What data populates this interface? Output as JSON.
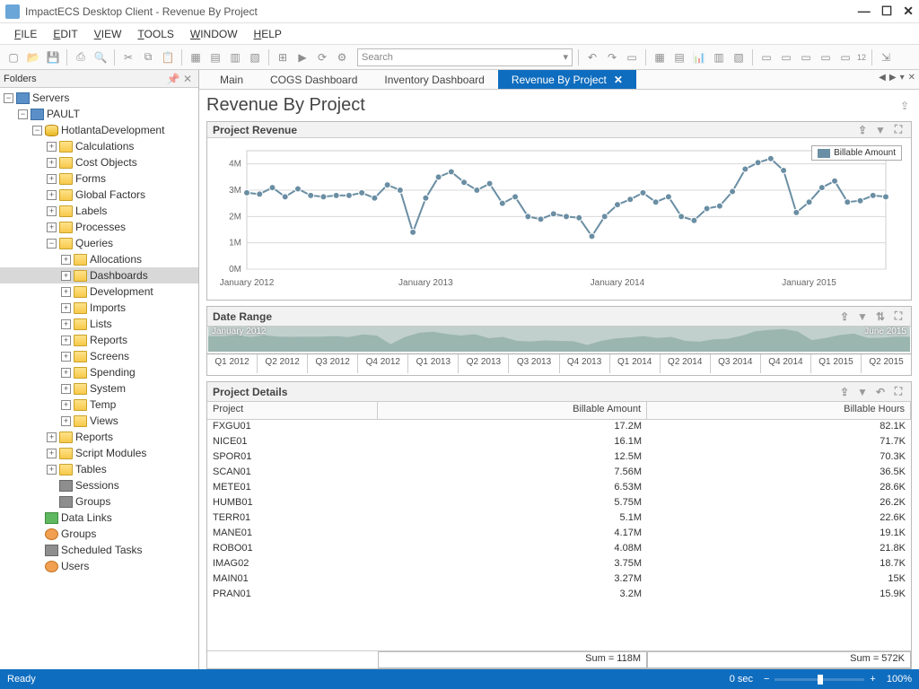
{
  "window": {
    "title": "ImpactECS Desktop Client - Revenue By Project"
  },
  "menu": {
    "file": "FILE",
    "edit": "EDIT",
    "view": "VIEW",
    "tools": "TOOLS",
    "window": "WINDOW",
    "help": "HELP"
  },
  "toolbar": {
    "search_placeholder": "Search"
  },
  "folders": {
    "title": "Folders",
    "root": "Servers",
    "server": "PAULT",
    "db": "HotlantaDevelopment",
    "db_children": [
      "Calculations",
      "Cost Objects",
      "Forms",
      "Global Factors",
      "Labels",
      "Processes",
      "Queries"
    ],
    "queries_children": [
      "Allocations",
      "Dashboards",
      "Development",
      "Imports",
      "Lists",
      "Reports",
      "Screens",
      "Spending",
      "System",
      "Temp",
      "Views"
    ],
    "after_queries": [
      "Reports",
      "Script Modules",
      "Tables",
      "Sessions",
      "Groups"
    ],
    "bottom": [
      "Data Links",
      "Groups",
      "Scheduled Tasks",
      "Users"
    ],
    "selected": "Dashboards"
  },
  "tabs": {
    "items": [
      "Main",
      "COGS Dashboard",
      "Inventory Dashboard",
      "Revenue By Project"
    ],
    "active": 3
  },
  "page": {
    "title": "Revenue By Project"
  },
  "chart": {
    "title": "Project Revenue",
    "type": "line",
    "legend": "Billable Amount",
    "ylim": [
      0,
      4500000
    ],
    "yticks": [
      0,
      1000000,
      2000000,
      3000000,
      4000000
    ],
    "ytick_labels": [
      "0M",
      "1M",
      "2M",
      "3M",
      "4M"
    ],
    "xtick_labels": [
      "January 2012",
      "January 2013",
      "January 2014",
      "January 2015"
    ],
    "line_color": "#6a8ea3",
    "marker_color": "#6a8ea3",
    "grid_color": "#d8d8d8",
    "background_color": "#ffffff",
    "values_millions": [
      2.9,
      2.85,
      3.1,
      2.75,
      3.05,
      2.8,
      2.75,
      2.8,
      2.8,
      2.9,
      2.7,
      3.2,
      3.0,
      1.4,
      2.7,
      3.5,
      3.7,
      3.3,
      3.0,
      3.25,
      2.5,
      2.75,
      2.0,
      1.9,
      2.1,
      2.0,
      1.95,
      1.25,
      2.0,
      2.45,
      2.65,
      2.9,
      2.55,
      2.75,
      2.0,
      1.85,
      2.3,
      2.4,
      2.95,
      3.8,
      4.05,
      4.2,
      3.75,
      2.15,
      2.55,
      3.1,
      3.35,
      2.55,
      2.6,
      2.8,
      2.75
    ]
  },
  "range": {
    "title": "Date Range",
    "start_label": "January 2012",
    "end_label": "June 2015",
    "area_color": "#9bb5af",
    "strip_bg": "#cdd9d6",
    "ticks": [
      "Q1 2012",
      "Q2 2012",
      "Q3 2012",
      "Q4 2012",
      "Q1 2013",
      "Q2 2013",
      "Q3 2013",
      "Q4 2013",
      "Q1 2014",
      "Q2 2014",
      "Q3 2014",
      "Q4 2014",
      "Q1 2015",
      "Q2 2015"
    ]
  },
  "details": {
    "title": "Project Details",
    "columns": [
      "Project",
      "Billable Amount",
      "Billable Hours"
    ],
    "rows": [
      [
        "FXGU01",
        "17.2M",
        "82.1K"
      ],
      [
        "NICE01",
        "16.1M",
        "71.7K"
      ],
      [
        "SPOR01",
        "12.5M",
        "70.3K"
      ],
      [
        "SCAN01",
        "7.56M",
        "36.5K"
      ],
      [
        "METE01",
        "6.53M",
        "28.6K"
      ],
      [
        "HUMB01",
        "5.75M",
        "26.2K"
      ],
      [
        "TERR01",
        "5.1M",
        "22.6K"
      ],
      [
        "MANE01",
        "4.17M",
        "19.1K"
      ],
      [
        "ROBO01",
        "4.08M",
        "21.8K"
      ],
      [
        "IMAG02",
        "3.75M",
        "18.7K"
      ],
      [
        "MAIN01",
        "3.27M",
        "15K"
      ],
      [
        "PRAN01",
        "3.2M",
        "15.9K"
      ]
    ],
    "sum_amount": "Sum = 118M",
    "sum_hours": "Sum = 572K"
  },
  "status": {
    "ready": "Ready",
    "time": "0 sec",
    "zoom": "100%"
  }
}
